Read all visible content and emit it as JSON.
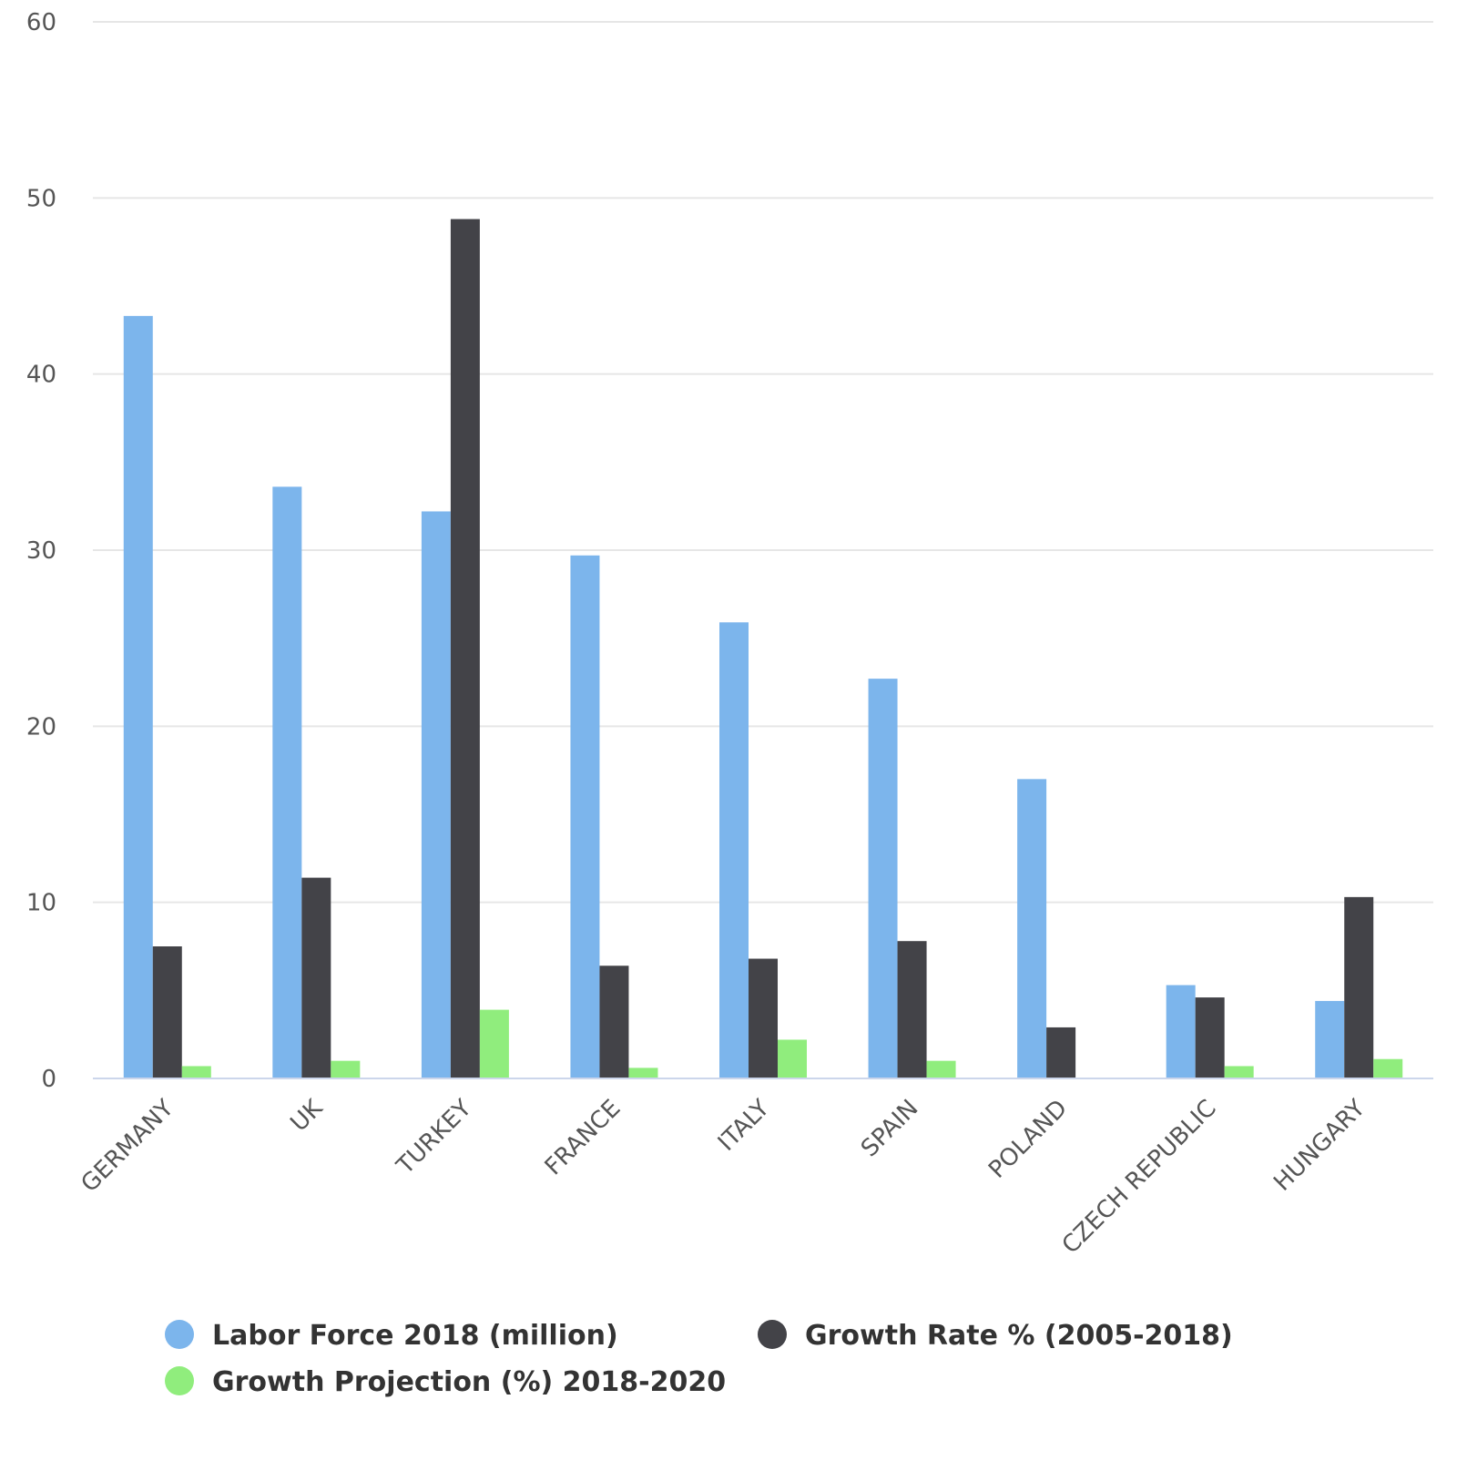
{
  "chart_data": {
    "type": "bar",
    "title": "",
    "xlabel": "",
    "ylabel": "",
    "ylim": [
      0,
      60
    ],
    "yticks": [
      0,
      10,
      20,
      30,
      40,
      50,
      60
    ],
    "grid": true,
    "legend_position": "bottom",
    "categories": [
      "GERMANY",
      "UK",
      "TURKEY",
      "FRANCE",
      "ITALY",
      "SPAIN",
      "POLAND",
      "CZECH REPUBLIC",
      "HUNGARY"
    ],
    "series": [
      {
        "name": "Labor Force 2018 (million)",
        "color": "#7cb5ec",
        "values": [
          43.3,
          33.6,
          32.2,
          29.7,
          25.9,
          22.7,
          17.0,
          5.3,
          4.4
        ]
      },
      {
        "name": "Growth Rate % (2005-2018)",
        "color": "#434348",
        "values": [
          7.5,
          11.4,
          48.8,
          6.4,
          6.8,
          7.8,
          2.9,
          4.6,
          10.3
        ]
      },
      {
        "name": "Growth Projection (%) 2018-2020",
        "color": "#90ed7d",
        "values": [
          0.7,
          1.0,
          3.9,
          0.6,
          2.2,
          1.0,
          0,
          0.7,
          1.1
        ]
      }
    ]
  }
}
